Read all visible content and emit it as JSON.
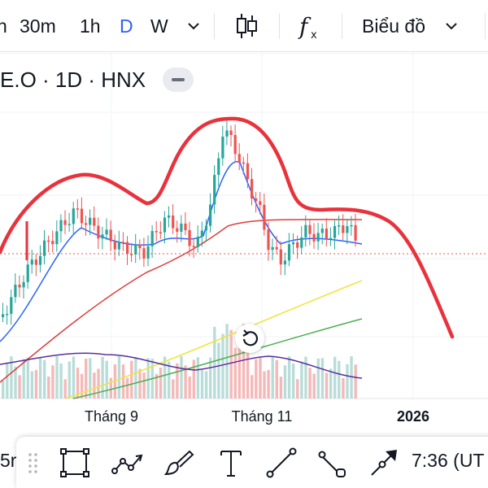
{
  "toolbar": {
    "intervals": [
      {
        "label": "n",
        "active": false
      },
      {
        "label": "30m",
        "active": false
      },
      {
        "label": "1h",
        "active": false
      },
      {
        "label": "D",
        "active": true
      },
      {
        "label": "W",
        "active": false
      }
    ],
    "chart_type_label": "Biểu đồ",
    "icons": [
      "chevron-down-icon",
      "candles-icon",
      "indicators-icon"
    ]
  },
  "legend": {
    "symbol_text": "E.O · 1D · HNX"
  },
  "time_axis": {
    "ticks": [
      "Tháng 9",
      "Tháng 11",
      "2026"
    ]
  },
  "colors": {
    "up": "#26a69a",
    "down": "#ef5350",
    "annotation": "#e8323c",
    "ma_blue": "#2962ff",
    "ma_red": "#e03c3c",
    "ma_yellow": "#f0e442",
    "ma_green": "#4caf50",
    "volume_ma": "#5b2c9e"
  },
  "bottom_bar": {
    "left_partial": "5r",
    "time_text": "7:36 (UT",
    "tools": [
      "rectangle-icon",
      "path-icon",
      "brush-icon",
      "text-icon",
      "trend-line-icon",
      "ray-icon",
      "arrow-icon"
    ]
  }
}
